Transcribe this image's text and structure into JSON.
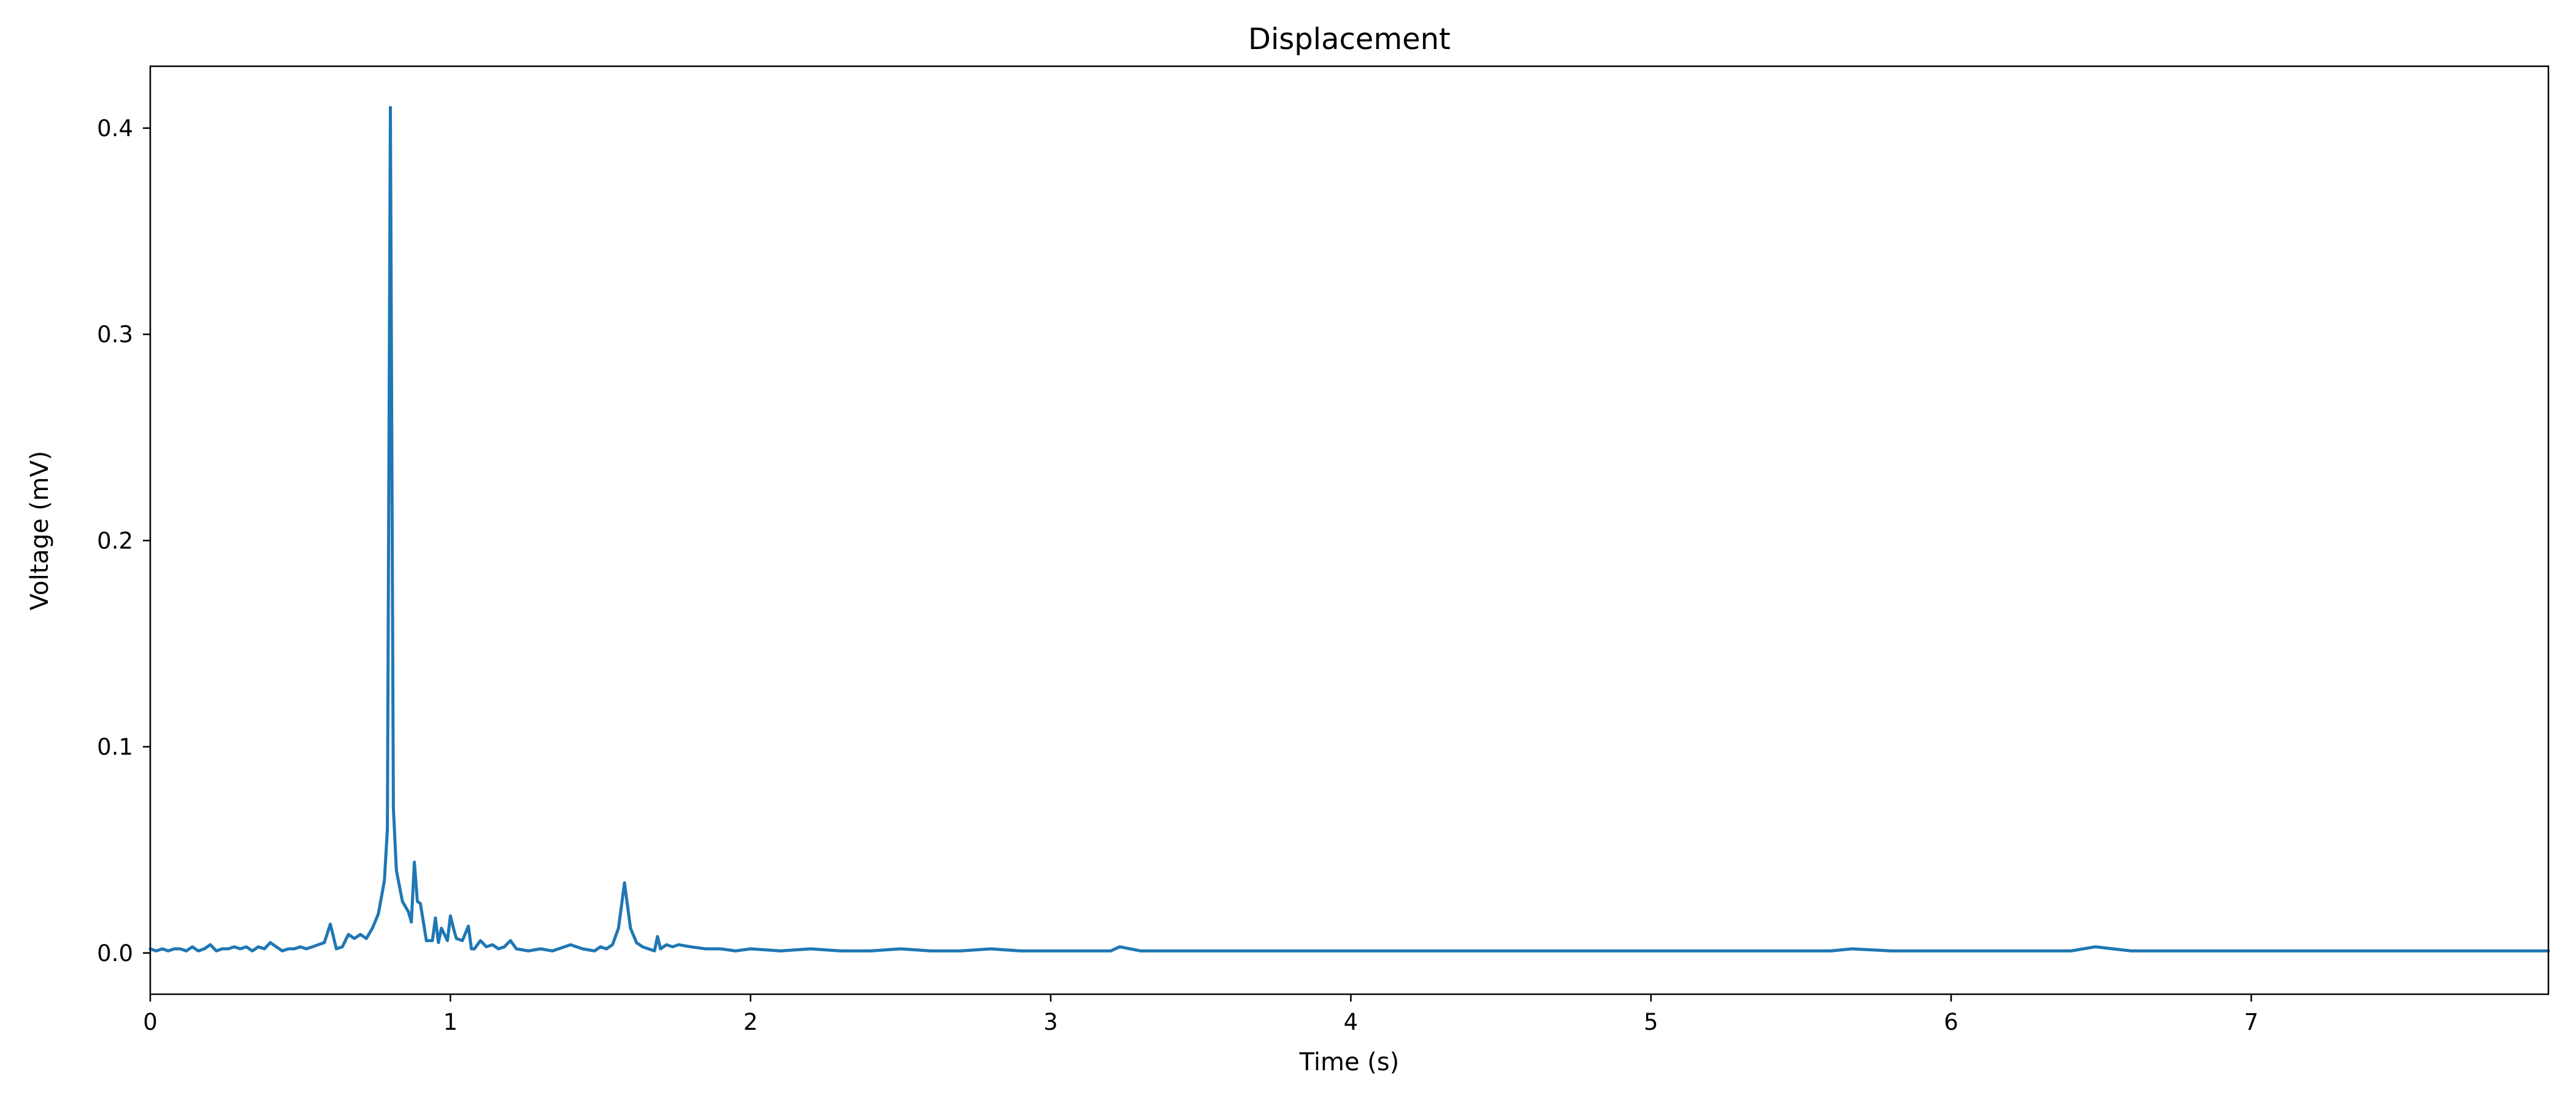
{
  "chart_data": {
    "type": "line",
    "title": "Displacement",
    "xlabel": "Time (s)",
    "ylabel": "Voltage (mV)",
    "xlim": [
      0,
      7.99
    ],
    "ylim": [
      -0.02,
      0.43
    ],
    "xticks": [
      0,
      1,
      2,
      3,
      4,
      5,
      6,
      7
    ],
    "xtick_labels": [
      "0",
      "1",
      "2",
      "3",
      "4",
      "5",
      "6",
      "7"
    ],
    "yticks": [
      0.0,
      0.1,
      0.2,
      0.3,
      0.4
    ],
    "ytick_labels": [
      "0.0",
      "0.1",
      "0.2",
      "0.3",
      "0.4"
    ],
    "grid": false,
    "series": [
      {
        "color": "#1f77b4",
        "x": [
          0.0,
          0.02,
          0.04,
          0.06,
          0.08,
          0.1,
          0.12,
          0.14,
          0.16,
          0.18,
          0.2,
          0.22,
          0.24,
          0.26,
          0.28,
          0.3,
          0.32,
          0.34,
          0.36,
          0.38,
          0.4,
          0.42,
          0.44,
          0.46,
          0.48,
          0.5,
          0.52,
          0.54,
          0.56,
          0.58,
          0.6,
          0.62,
          0.64,
          0.66,
          0.68,
          0.7,
          0.72,
          0.74,
          0.76,
          0.78,
          0.79,
          0.8,
          0.81,
          0.82,
          0.84,
          0.86,
          0.87,
          0.88,
          0.89,
          0.9,
          0.92,
          0.94,
          0.95,
          0.96,
          0.97,
          0.98,
          0.99,
          1.0,
          1.01,
          1.02,
          1.04,
          1.06,
          1.07,
          1.08,
          1.1,
          1.12,
          1.14,
          1.16,
          1.18,
          1.2,
          1.22,
          1.26,
          1.3,
          1.34,
          1.38,
          1.4,
          1.44,
          1.48,
          1.5,
          1.52,
          1.54,
          1.56,
          1.58,
          1.6,
          1.62,
          1.64,
          1.66,
          1.68,
          1.69,
          1.7,
          1.72,
          1.74,
          1.76,
          1.8,
          1.85,
          1.9,
          1.95,
          2.0,
          2.1,
          2.2,
          2.3,
          2.4,
          2.5,
          2.6,
          2.7,
          2.8,
          2.9,
          3.0,
          3.1,
          3.2,
          3.23,
          3.3,
          3.4,
          3.5,
          3.6,
          3.7,
          3.8,
          3.9,
          4.0,
          4.2,
          4.4,
          4.6,
          4.8,
          5.0,
          5.2,
          5.4,
          5.6,
          5.67,
          5.8,
          6.0,
          6.2,
          6.4,
          6.48,
          6.6,
          6.8,
          7.0,
          7.2,
          7.4,
          7.6,
          7.8,
          7.99
        ],
        "y": [
          0.002,
          0.001,
          0.002,
          0.001,
          0.002,
          0.002,
          0.001,
          0.003,
          0.001,
          0.002,
          0.004,
          0.001,
          0.002,
          0.002,
          0.003,
          0.002,
          0.003,
          0.001,
          0.003,
          0.002,
          0.005,
          0.003,
          0.001,
          0.002,
          0.002,
          0.003,
          0.002,
          0.003,
          0.004,
          0.005,
          0.014,
          0.002,
          0.003,
          0.009,
          0.007,
          0.009,
          0.007,
          0.012,
          0.019,
          0.035,
          0.06,
          0.41,
          0.07,
          0.04,
          0.025,
          0.02,
          0.015,
          0.044,
          0.025,
          0.024,
          0.006,
          0.006,
          0.017,
          0.005,
          0.012,
          0.009,
          0.006,
          0.018,
          0.012,
          0.007,
          0.006,
          0.013,
          0.002,
          0.002,
          0.006,
          0.003,
          0.004,
          0.002,
          0.003,
          0.006,
          0.002,
          0.001,
          0.002,
          0.001,
          0.003,
          0.004,
          0.002,
          0.001,
          0.003,
          0.002,
          0.004,
          0.012,
          0.034,
          0.012,
          0.005,
          0.003,
          0.002,
          0.001,
          0.008,
          0.002,
          0.004,
          0.003,
          0.004,
          0.003,
          0.002,
          0.002,
          0.001,
          0.002,
          0.001,
          0.002,
          0.001,
          0.001,
          0.002,
          0.001,
          0.001,
          0.002,
          0.001,
          0.001,
          0.001,
          0.001,
          0.003,
          0.001,
          0.001,
          0.001,
          0.001,
          0.001,
          0.001,
          0.001,
          0.001,
          0.001,
          0.001,
          0.001,
          0.001,
          0.001,
          0.001,
          0.001,
          0.001,
          0.002,
          0.001,
          0.001,
          0.001,
          0.001,
          0.003,
          0.001,
          0.001,
          0.001,
          0.001,
          0.001,
          0.001,
          0.001,
          0.001
        ]
      }
    ]
  }
}
